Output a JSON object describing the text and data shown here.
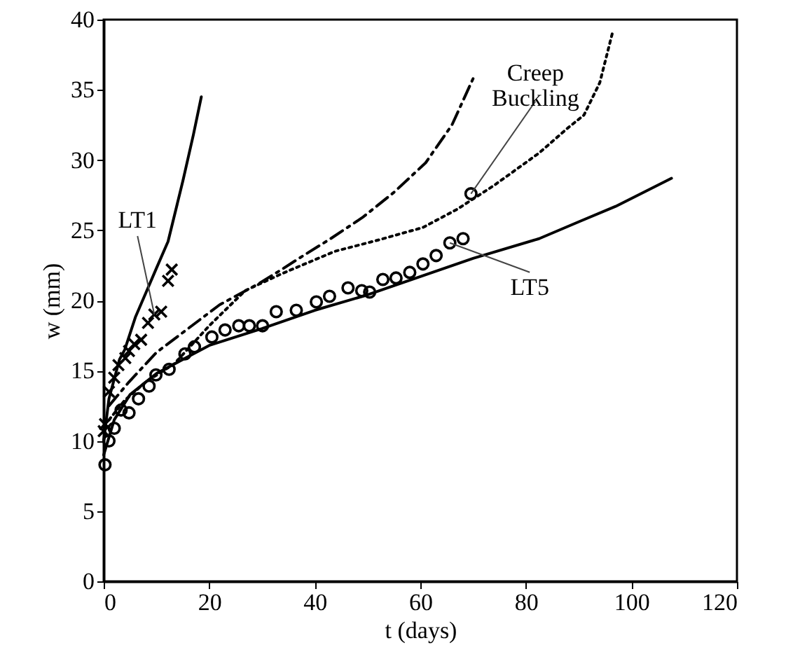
{
  "chart_data": {
    "type": "line",
    "xlabel": "t (days)",
    "ylabel": "w (mm)",
    "xlim": [
      0,
      120
    ],
    "xticks": [
      0,
      20,
      40,
      60,
      80,
      100,
      120
    ],
    "ylim": [
      0,
      40
    ],
    "yticks": [
      0,
      5,
      10,
      15,
      20,
      25,
      30,
      35,
      40
    ],
    "grid": false,
    "series": [
      {
        "line_style": "solid",
        "marker": "none",
        "color": "#000000",
        "x": [
          0,
          1,
          3,
          4,
          6,
          8.4,
          10,
          12.2,
          15,
          17,
          18.5
        ],
        "values": [
          10,
          13,
          15.8,
          16.5,
          18.8,
          20.9,
          22.3,
          24.2,
          28.5,
          31.8,
          34.5
        ]
      },
      {
        "line_style": "solid",
        "marker": "none",
        "color": "#000000",
        "x": [
          0,
          2,
          5,
          10,
          20,
          30,
          40,
          50,
          60,
          70,
          82.5,
          90,
          97,
          107.6
        ],
        "values": [
          9,
          11.5,
          13.3,
          14.8,
          16.8,
          18,
          19.3,
          20.4,
          21.7,
          23,
          24.4,
          25.6,
          26.7,
          28.7
        ]
      },
      {
        "line_style": "dashdot",
        "marker": "none",
        "color": "#000000",
        "x": [
          1,
          4.8,
          10,
          16,
          22,
          29.4,
          33.7,
          37,
          43,
          49,
          55,
          61,
          66,
          70
        ],
        "values": [
          12.5,
          14.2,
          16.3,
          18,
          19.7,
          21.2,
          22.2,
          23,
          24.4,
          25.9,
          27.7,
          29.8,
          32.5,
          35.8
        ]
      },
      {
        "line_style": "dotted",
        "marker": "none",
        "color": "#000000",
        "x": [
          1,
          4,
          8,
          13.4,
          20,
          26.8,
          33.7,
          43.8,
          52,
          60.5,
          67,
          74,
          82.5,
          88,
          91,
          94,
          96.5
        ],
        "values": [
          11.5,
          12.9,
          14.2,
          15.5,
          18.2,
          20.7,
          21.9,
          23.5,
          24.3,
          25.2,
          26.5,
          28.2,
          30.5,
          32.3,
          33.2,
          35.5,
          39.2
        ]
      },
      {
        "type": "scatter",
        "marker": "cross",
        "color": "#000000",
        "x": [
          0,
          0.25,
          1,
          2,
          2.8,
          4.1,
          4.8,
          5.8,
          7.1,
          8.4,
          9.6,
          10.9,
          12.2,
          12.9
        ],
        "values": [
          10.7,
          11.2,
          13.5,
          14.5,
          15.4,
          15.9,
          16.4,
          16.9,
          17.2,
          18.4,
          19,
          19.2,
          21.4,
          22.2
        ]
      },
      {
        "type": "scatter",
        "marker": "circle",
        "color": "#000000",
        "x": [
          0.25,
          1,
          2,
          3.3,
          4.8,
          6.6,
          8.6,
          9.9,
          12.4,
          15.4,
          17.2,
          20.5,
          23,
          25.6,
          27.6,
          30.1,
          32.7,
          36.5,
          40.3,
          42.8,
          46.3,
          48.9,
          50.4,
          52.9,
          55.4,
          58,
          60.5,
          63,
          65.6,
          68.1,
          69.6
        ],
        "values": [
          8.3,
          10,
          10.9,
          12.2,
          12,
          13,
          13.9,
          14.7,
          15.1,
          16.2,
          16.7,
          17.4,
          17.9,
          18.2,
          18.2,
          18.2,
          19.2,
          19.3,
          19.9,
          20.3,
          20.9,
          20.7,
          20.6,
          21.5,
          21.6,
          22,
          22.6,
          23.2,
          24.1,
          24.4,
          27.6
        ]
      }
    ],
    "annotations": [
      {
        "text": "LT1",
        "x": 9.6,
        "y": 19
      },
      {
        "text": "LT5",
        "x": 65.6,
        "y": 24.1
      },
      {
        "text": "Creep\nBuckling",
        "x": 69.6,
        "y": 27.6
      }
    ]
  }
}
